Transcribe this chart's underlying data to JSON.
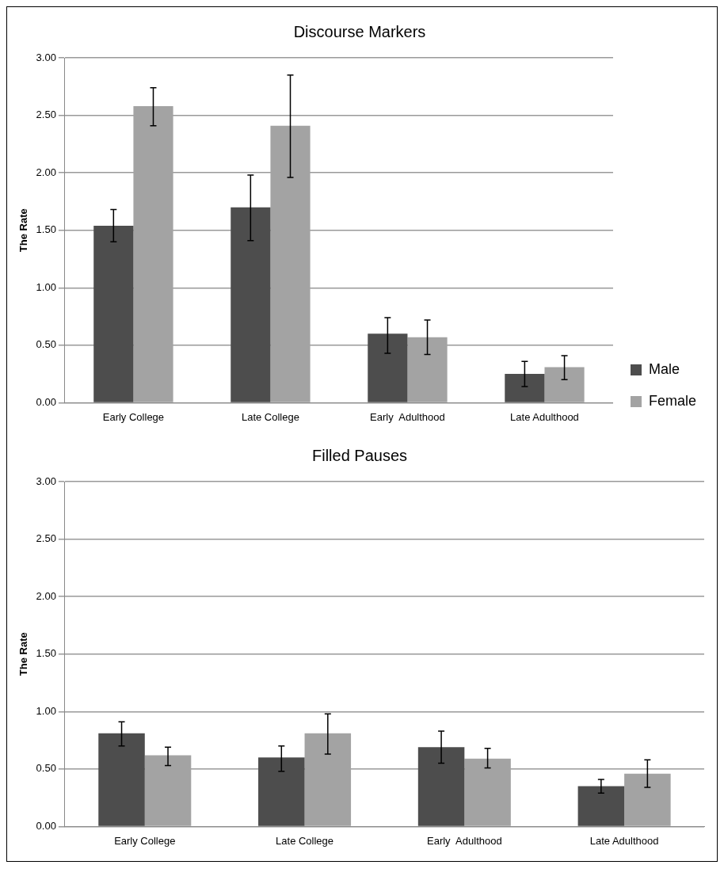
{
  "chart_data": [
    {
      "type": "bar",
      "title": "Discourse Markers",
      "ylabel": "The Rate",
      "categories": [
        "Early College",
        "Late College",
        "Early  Adulthood",
        "Late Adulthood"
      ],
      "series": [
        {
          "name": "Male",
          "color": "#4d4d4d",
          "values": [
            1.54,
            1.7,
            0.6,
            0.25
          ],
          "errors": [
            [
              1.4,
              1.68
            ],
            [
              1.41,
              1.98
            ],
            [
              0.43,
              0.74
            ],
            [
              0.14,
              0.36
            ]
          ]
        },
        {
          "name": "Female",
          "color": "#a3a3a3",
          "values": [
            2.58,
            2.41,
            0.57,
            0.31
          ],
          "errors": [
            [
              2.41,
              2.74
            ],
            [
              1.96,
              2.85
            ],
            [
              0.42,
              0.72
            ],
            [
              0.2,
              0.41
            ]
          ]
        }
      ],
      "ylim": [
        0,
        3
      ],
      "yticks": [
        {
          "value": 0,
          "label": "0.00"
        },
        {
          "value": 0.5,
          "label": "0.50"
        },
        {
          "value": 1,
          "label": "1.00"
        },
        {
          "value": 1.5,
          "label": "1.50"
        },
        {
          "value": 2,
          "label": "2.00"
        },
        {
          "value": 2.5,
          "label": "2.50"
        },
        {
          "value": 3,
          "label": "3.00"
        }
      ],
      "grid": "y",
      "legend": "right"
    },
    {
      "type": "bar",
      "title": "Filled Pauses",
      "ylabel": "The Rate",
      "categories": [
        "Early College",
        "Late College",
        "Early  Adulthood",
        "Late Adulthood"
      ],
      "series": [
        {
          "color": "#4d4d4d",
          "values": [
            0.81,
            0.6,
            0.69,
            0.35
          ],
          "errors": [
            [
              0.7,
              0.91
            ],
            [
              0.48,
              0.7
            ],
            [
              0.55,
              0.83
            ],
            [
              0.29,
              0.41
            ]
          ]
        },
        {
          "color": "#a3a3a3",
          "values": [
            0.62,
            0.81,
            0.59,
            0.46
          ],
          "errors": [
            [
              0.53,
              0.69
            ],
            [
              0.63,
              0.98
            ],
            [
              0.51,
              0.68
            ],
            [
              0.34,
              0.58
            ]
          ]
        }
      ],
      "ylim": [
        0,
        3
      ],
      "yticks": [
        {
          "value": 0,
          "label": "0.00"
        },
        {
          "value": 0.5,
          "label": "0.50"
        },
        {
          "value": 1,
          "label": "1.00"
        },
        {
          "value": 1.5,
          "label": "1.50"
        },
        {
          "value": 2,
          "label": "2.00"
        },
        {
          "value": 2.5,
          "label": "2.50"
        },
        {
          "value": 3,
          "label": "3.00"
        }
      ],
      "grid": "y",
      "legend": false
    }
  ]
}
